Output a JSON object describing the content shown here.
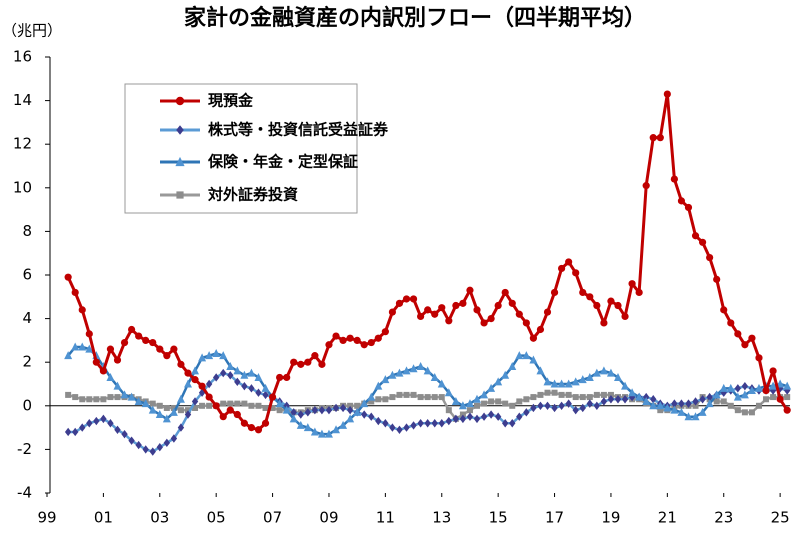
{
  "chart_data": {
    "type": "line",
    "title": "家計の金融資産の内訳別フロー（四半期平均）",
    "y_unit": "（兆円）",
    "x": [
      1999.75,
      2000,
      2000.25,
      2000.5,
      2000.75,
      2001,
      2001.25,
      2001.5,
      2001.75,
      2002,
      2002.25,
      2002.5,
      2002.75,
      2003,
      2003.25,
      2003.5,
      2003.75,
      2004,
      2004.25,
      2004.5,
      2004.75,
      2005,
      2005.25,
      2005.5,
      2005.75,
      2006,
      2006.25,
      2006.5,
      2006.75,
      2007,
      2007.25,
      2007.5,
      2007.75,
      2008,
      2008.25,
      2008.5,
      2008.75,
      2009,
      2009.25,
      2009.5,
      2009.75,
      2010,
      2010.25,
      2010.5,
      2010.75,
      2011,
      2011.25,
      2011.5,
      2011.75,
      2012,
      2012.25,
      2012.5,
      2012.75,
      2013,
      2013.25,
      2013.5,
      2013.75,
      2014,
      2014.25,
      2014.5,
      2014.75,
      2015,
      2015.25,
      2015.5,
      2015.75,
      2016,
      2016.25,
      2016.5,
      2016.75,
      2017,
      2017.25,
      2017.5,
      2017.75,
      2018,
      2018.25,
      2018.5,
      2018.75,
      2019,
      2019.25,
      2019.5,
      2019.75,
      2020,
      2020.25,
      2020.5,
      2020.75,
      2021,
      2021.25,
      2021.5,
      2021.75,
      2022,
      2022.25,
      2022.5,
      2022.75,
      2023,
      2023.25,
      2023.5,
      2023.75,
      2024,
      2024.25,
      2024.5,
      2024.75,
      2025,
      2025.25
    ],
    "series": [
      {
        "name": "現預金",
        "color": "#c00000",
        "marker": "circle",
        "marker_color": "#c00000",
        "values": [
          5.9,
          5.2,
          4.4,
          3.3,
          2.0,
          1.6,
          2.6,
          2.1,
          2.9,
          3.5,
          3.2,
          3.0,
          2.9,
          2.6,
          2.3,
          2.6,
          1.9,
          1.5,
          1.2,
          0.9,
          0.4,
          0.0,
          -0.5,
          -0.2,
          -0.4,
          -0.8,
          -1.0,
          -1.1,
          -0.8,
          0.4,
          1.3,
          1.3,
          2.0,
          1.9,
          2.0,
          2.3,
          1.9,
          2.8,
          3.2,
          3.0,
          3.1,
          3.0,
          2.8,
          2.9,
          3.1,
          3.4,
          4.3,
          4.7,
          4.9,
          4.9,
          4.1,
          4.4,
          4.2,
          4.5,
          3.9,
          4.6,
          4.7,
          5.3,
          4.4,
          3.8,
          4.0,
          4.6,
          5.2,
          4.7,
          4.2,
          3.8,
          3.1,
          3.5,
          4.3,
          5.2,
          6.3,
          6.6,
          6.1,
          5.2,
          5.0,
          4.6,
          3.8,
          4.8,
          4.6,
          4.1,
          5.6,
          5.2,
          10.1,
          12.3,
          12.3,
          14.3,
          10.4,
          9.4,
          9.1,
          7.8,
          7.5,
          6.8,
          5.8,
          4.4,
          3.8,
          3.3,
          2.8,
          3.1,
          2.2,
          0.7,
          1.6,
          0.3,
          -0.2
        ]
      },
      {
        "name": "株式等・投資信託受益証券",
        "color": "#5b9bd5",
        "marker": "diamond",
        "marker_color": "#3d3d8f",
        "values": [
          -1.2,
          -1.2,
          -1.0,
          -0.8,
          -0.7,
          -0.6,
          -0.8,
          -1.1,
          -1.3,
          -1.6,
          -1.8,
          -2.0,
          -2.1,
          -1.9,
          -1.7,
          -1.5,
          -1.0,
          -0.4,
          0.2,
          0.6,
          1.0,
          1.3,
          1.5,
          1.4,
          1.1,
          0.9,
          0.8,
          0.6,
          0.5,
          0.4,
          0.2,
          0.0,
          -0.3,
          -0.4,
          -0.3,
          -0.2,
          -0.2,
          -0.2,
          -0.1,
          -0.1,
          -0.2,
          -0.3,
          -0.4,
          -0.5,
          -0.7,
          -0.8,
          -1.0,
          -1.1,
          -1.0,
          -0.9,
          -0.8,
          -0.8,
          -0.8,
          -0.8,
          -0.7,
          -0.6,
          -0.6,
          -0.5,
          -0.6,
          -0.5,
          -0.4,
          -0.5,
          -0.8,
          -0.8,
          -0.5,
          -0.3,
          -0.1,
          0.0,
          0.0,
          -0.1,
          0.0,
          0.1,
          -0.2,
          -0.1,
          0.1,
          0.0,
          0.2,
          0.3,
          0.3,
          0.3,
          0.4,
          0.4,
          0.4,
          0.3,
          0.1,
          0.0,
          0.1,
          0.1,
          0.1,
          0.2,
          0.3,
          0.4,
          0.5,
          0.6,
          0.7,
          0.8,
          0.9,
          0.8,
          0.7,
          0.7,
          0.7,
          0.8,
          0.7
        ]
      },
      {
        "name": "保険・年金・定型保証",
        "color": "#2e75b6",
        "marker": "triangle",
        "marker_color": "#4f93d2",
        "values": [
          2.3,
          2.7,
          2.7,
          2.6,
          2.3,
          1.8,
          1.3,
          0.9,
          0.5,
          0.4,
          0.2,
          0.1,
          -0.2,
          -0.4,
          -0.6,
          -0.3,
          0.3,
          1.0,
          1.6,
          2.2,
          2.3,
          2.4,
          2.3,
          1.8,
          1.6,
          1.4,
          1.5,
          1.3,
          0.8,
          0.4,
          0.1,
          -0.2,
          -0.6,
          -0.9,
          -1.0,
          -1.2,
          -1.3,
          -1.3,
          -1.1,
          -0.9,
          -0.6,
          -0.3,
          0.1,
          0.4,
          0.9,
          1.2,
          1.4,
          1.5,
          1.6,
          1.7,
          1.8,
          1.6,
          1.3,
          1.0,
          0.6,
          0.2,
          0.0,
          0.1,
          0.3,
          0.5,
          0.8,
          1.1,
          1.4,
          1.8,
          2.3,
          2.3,
          2.1,
          1.6,
          1.1,
          1.0,
          1.0,
          1.0,
          1.1,
          1.2,
          1.3,
          1.5,
          1.6,
          1.5,
          1.3,
          0.9,
          0.6,
          0.4,
          0.2,
          0.0,
          0.0,
          -0.1,
          -0.2,
          -0.3,
          -0.5,
          -0.5,
          -0.3,
          0.1,
          0.5,
          0.8,
          0.8,
          0.4,
          0.5,
          0.7,
          0.8,
          0.9,
          0.9,
          1.0,
          0.9
        ]
      },
      {
        "name": "対外証券投資",
        "color": "#999999",
        "marker": "square",
        "marker_color": "#8c8c8c",
        "values": [
          0.5,
          0.4,
          0.3,
          0.3,
          0.3,
          0.3,
          0.4,
          0.4,
          0.4,
          0.4,
          0.3,
          0.2,
          0.1,
          0.0,
          -0.1,
          -0.1,
          -0.2,
          -0.2,
          -0.1,
          0.0,
          0.0,
          0.0,
          0.1,
          0.1,
          0.1,
          0.1,
          0.0,
          0.0,
          -0.1,
          -0.1,
          -0.2,
          -0.2,
          -0.3,
          -0.3,
          -0.2,
          -0.2,
          -0.1,
          -0.1,
          -0.1,
          0.0,
          0.0,
          0.0,
          0.1,
          0.2,
          0.3,
          0.3,
          0.4,
          0.5,
          0.5,
          0.5,
          0.4,
          0.4,
          0.4,
          0.4,
          -0.2,
          -0.6,
          -0.4,
          -0.2,
          0.0,
          0.1,
          0.2,
          0.2,
          0.1,
          0.0,
          0.2,
          0.3,
          0.4,
          0.5,
          0.6,
          0.6,
          0.5,
          0.5,
          0.4,
          0.4,
          0.4,
          0.5,
          0.5,
          0.5,
          0.4,
          0.4,
          0.3,
          0.3,
          0.1,
          0.0,
          -0.2,
          -0.2,
          -0.1,
          0.0,
          0.0,
          0.0,
          0.4,
          0.3,
          0.2,
          0.2,
          0.0,
          -0.2,
          -0.3,
          -0.3,
          0.0,
          0.3,
          0.4,
          0.4,
          0.4
        ]
      }
    ],
    "xlim": [
      1999,
      2025.35
    ],
    "xticks": [
      {
        "value": 1999,
        "label": "99"
      },
      {
        "value": 2001,
        "label": "01"
      },
      {
        "value": 2003,
        "label": "03"
      },
      {
        "value": 2005,
        "label": "05"
      },
      {
        "value": 2007,
        "label": "07"
      },
      {
        "value": 2009,
        "label": "09"
      },
      {
        "value": 2011,
        "label": "11"
      },
      {
        "value": 2013,
        "label": "13"
      },
      {
        "value": 2015,
        "label": "15"
      },
      {
        "value": 2017,
        "label": "17"
      },
      {
        "value": 2019,
        "label": "19"
      },
      {
        "value": 2021,
        "label": "21"
      },
      {
        "value": 2023,
        "label": "23"
      },
      {
        "value": 2025,
        "label": "25"
      }
    ],
    "ylim": [
      -4,
      16
    ],
    "yticks": [
      -4,
      -2,
      0,
      2,
      4,
      6,
      8,
      10,
      12,
      14,
      16
    ],
    "grid": false
  }
}
